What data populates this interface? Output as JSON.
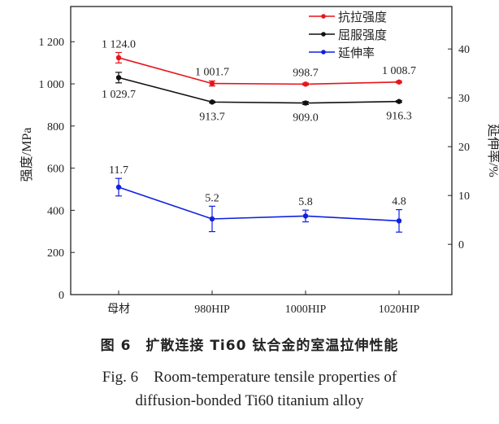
{
  "chart_data": {
    "type": "line",
    "categories": [
      "母材",
      "980HIP",
      "1000HIP",
      "1020HIP"
    ],
    "left_axis": {
      "label": "强度/MPa",
      "range": [
        0,
        1367
      ],
      "ticks": [
        0,
        200,
        400,
        600,
        800,
        1000,
        1200
      ],
      "tick_labels": [
        "0",
        "200",
        "400",
        "600",
        "800",
        "1 000",
        "1 200"
      ]
    },
    "right_axis": {
      "label": "延伸率/%",
      "range": [
        -10.3,
        48.7
      ],
      "ticks": [
        0,
        10,
        20,
        30,
        40
      ],
      "tick_labels": [
        "0",
        "10",
        "20",
        "30",
        "40"
      ]
    },
    "legend_placement": "top-right",
    "grid": false,
    "series": [
      {
        "name": "抗拉强度",
        "axis": "left",
        "color": "#e8141b",
        "values": [
          1124.0,
          1001.7,
          998.7,
          1008.7
        ],
        "errors": [
          25,
          12,
          5,
          4
        ],
        "labels": [
          "1 124.0",
          "1 001.7",
          "998.7",
          "1 008.7"
        ],
        "label_pos": "above"
      },
      {
        "name": "屈服强度",
        "axis": "left",
        "color": "#111111",
        "values": [
          1029.7,
          913.7,
          909.0,
          916.3
        ],
        "errors": [
          25,
          4,
          7,
          4
        ],
        "labels": [
          "1 029.7",
          "913.7",
          "909.0",
          "916.3"
        ],
        "label_pos": "below"
      },
      {
        "name": "延伸率",
        "axis": "right",
        "color": "#1020e0",
        "values": [
          11.7,
          5.2,
          5.8,
          4.8
        ],
        "errors": [
          1.8,
          2.6,
          1.2,
          2.3
        ],
        "labels": [
          "11.7",
          "5.2",
          "5.8",
          "4.8"
        ],
        "label_pos": "above"
      }
    ]
  },
  "caption": {
    "cn": "图 6　扩散连接 Ti60 钛合金的室温拉伸性能",
    "en_line1": "Fig. 6　Room-temperature tensile properties of",
    "en_line2": "diffusion-bonded Ti60 titanium alloy"
  }
}
